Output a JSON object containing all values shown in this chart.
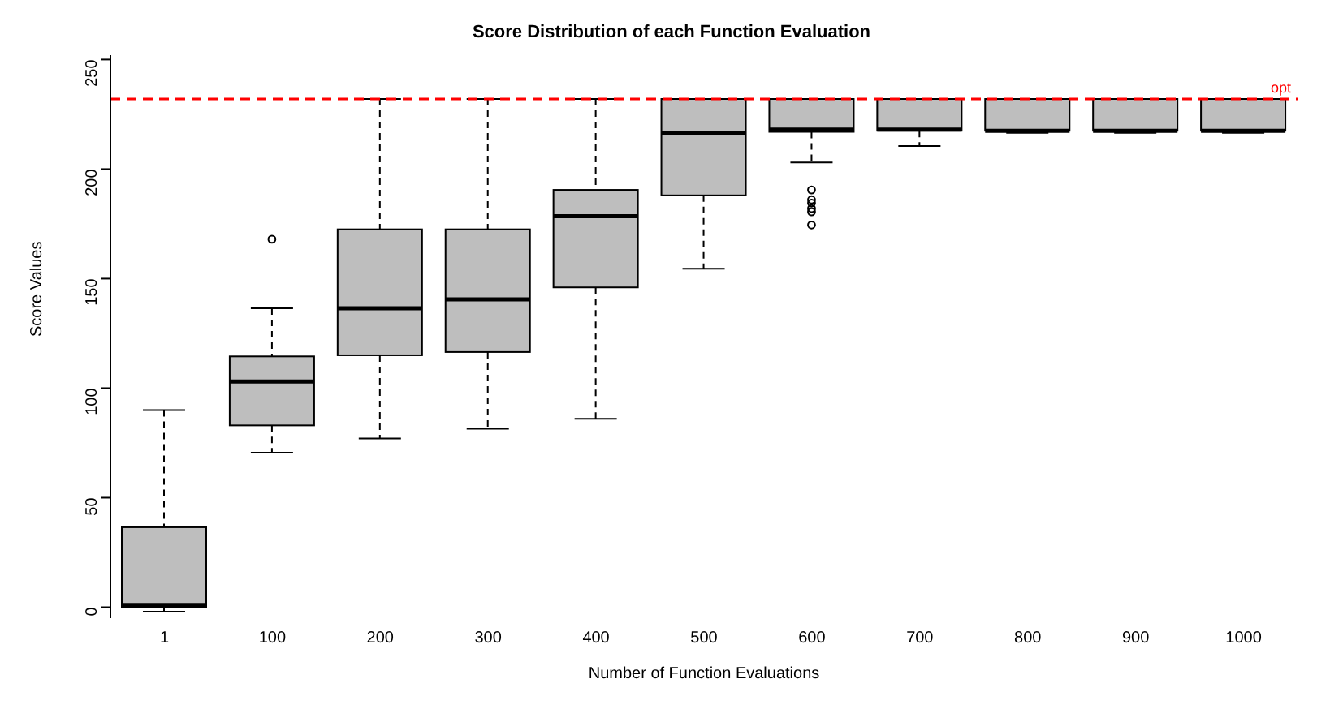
{
  "chart_data": {
    "type": "box",
    "title": "Score Distribution of each Function Evaluation",
    "xlabel": "Number of Function Evaluations",
    "ylabel": "Score Values",
    "categories": [
      "1",
      "100",
      "200",
      "300",
      "400",
      "500",
      "600",
      "700",
      "800",
      "900",
      "1000"
    ],
    "color": "#bebebe",
    "boxes": [
      {
        "low": -2,
        "q1": 0,
        "median": 1,
        "q3": 36.5,
        "high": 90
      },
      {
        "low": 70.5,
        "q1": 83,
        "median": 103,
        "q3": 114.5,
        "high": 136.5,
        "outliers": [
          168
        ]
      },
      {
        "low": 77,
        "q1": 115,
        "median": 136.5,
        "q3": 172.5,
        "high": 232
      },
      {
        "low": 81.5,
        "q1": 116.5,
        "median": 140.5,
        "q3": 172.5,
        "high": 232
      },
      {
        "low": 86,
        "q1": 146,
        "median": 178.5,
        "q3": 190.5,
        "high": 232
      },
      {
        "low": 154.5,
        "q1": 188,
        "median": 216.5,
        "q3": 232,
        "high": 232
      },
      {
        "low": 203,
        "q1": 217,
        "median": 218,
        "q3": 232,
        "high": 232,
        "outliers": [
          190.5,
          186,
          184.5,
          182,
          180.5,
          174.5
        ]
      },
      {
        "low": 210.5,
        "q1": 217.5,
        "median": 218,
        "q3": 232,
        "high": 232
      },
      {
        "low": 216.5,
        "q1": 217.5,
        "median": 217.5,
        "q3": 232,
        "high": 232
      },
      {
        "low": 216.5,
        "q1": 217.5,
        "median": 217.5,
        "q3": 232,
        "high": 232
      },
      {
        "low": 216.5,
        "q1": 217.5,
        "median": 217.5,
        "q3": 232,
        "high": 232
      }
    ],
    "ylim": [
      -5,
      252
    ],
    "yticks": [
      0,
      50,
      100,
      150,
      200,
      250
    ],
    "ref_lines": [
      {
        "axis": "y",
        "value": 232,
        "label": "opt",
        "color": "#ff0000",
        "line_style": "dashed"
      }
    ]
  }
}
